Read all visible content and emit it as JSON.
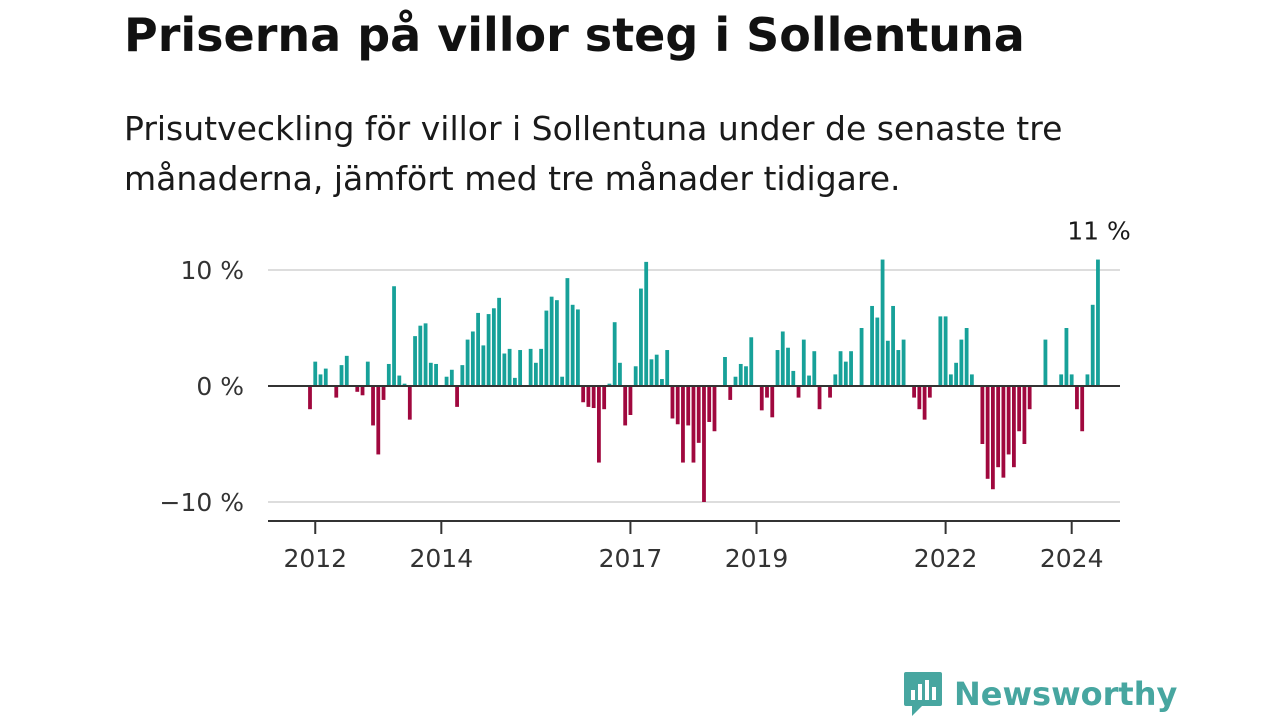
{
  "title": "Priserna på villor steg i Sollentuna",
  "subtitle": "Prisutveckling för villor i Sollentuna under de senaste tre månaderna, jämfört med tre månader tidigare.",
  "brand": "Newsworthy",
  "colors": {
    "positive": "#17a199",
    "negative": "#a0083e",
    "grid": "#dddddd",
    "zero_line": "#333333",
    "brand": "#47a6a0"
  },
  "chart_data": {
    "type": "bar",
    "x_start": "2011-12",
    "frequency": "monthly",
    "x_ticks": [
      "2012",
      "2014",
      "2017",
      "2019",
      "2022",
      "2024"
    ],
    "y_ticks": [
      10,
      0,
      -10
    ],
    "y_tick_labels": [
      "10 %",
      "0 %",
      "−10 %"
    ],
    "ylim": [
      -11,
      12
    ],
    "grid": true,
    "annotation": "11 %",
    "values": [
      -2.0,
      2.1,
      1.0,
      1.5,
      0.0,
      -1.0,
      1.8,
      2.6,
      0.0,
      -0.5,
      -0.8,
      2.1,
      -3.4,
      -5.9,
      -1.2,
      1.9,
      8.6,
      0.9,
      0.2,
      -2.9,
      4.3,
      5.2,
      5.4,
      2.0,
      1.9,
      0.0,
      0.8,
      1.4,
      -1.8,
      1.8,
      4.0,
      4.7,
      6.3,
      3.5,
      6.2,
      6.7,
      7.6,
      2.8,
      3.2,
      0.7,
      3.1,
      0.0,
      3.2,
      2.0,
      3.2,
      6.5,
      7.7,
      7.4,
      0.8,
      9.3,
      7.0,
      6.6,
      -1.4,
      -1.8,
      -1.9,
      -6.6,
      -2.0,
      0.2,
      5.5,
      2.0,
      -3.4,
      -2.5,
      1.7,
      8.4,
      10.7,
      2.3,
      2.7,
      0.6,
      3.1,
      -2.8,
      -3.3,
      -6.6,
      -3.4,
      -6.6,
      -4.9,
      -10.0,
      -3.1,
      -3.9,
      0.0,
      2.5,
      -1.2,
      0.8,
      1.9,
      1.7,
      4.2,
      0.0,
      -2.1,
      -1.0,
      -2.7,
      3.1,
      4.7,
      3.3,
      1.3,
      -1.0,
      4.0,
      0.9,
      3.0,
      -2.0,
      0.0,
      -1.0,
      1.0,
      3.0,
      2.1,
      3.0,
      0.0,
      5.0,
      0.0,
      6.9,
      5.9,
      10.9,
      3.9,
      6.9,
      3.1,
      4.0,
      0.0,
      -1.0,
      -2.0,
      -2.9,
      -1.0,
      0.0,
      6.0,
      6.0,
      1.0,
      2.0,
      4.0,
      5.0,
      1.0,
      0.0,
      -5.0,
      -8.0,
      -8.9,
      -7.0,
      -7.9,
      -5.9,
      -7.0,
      -3.9,
      -5.0,
      -2.0,
      0.0,
      0.0,
      4.0,
      0.0,
      0.0,
      1.0,
      5.0,
      1.0,
      -2.0,
      -3.9,
      1.0,
      7.0,
      10.9
    ]
  }
}
